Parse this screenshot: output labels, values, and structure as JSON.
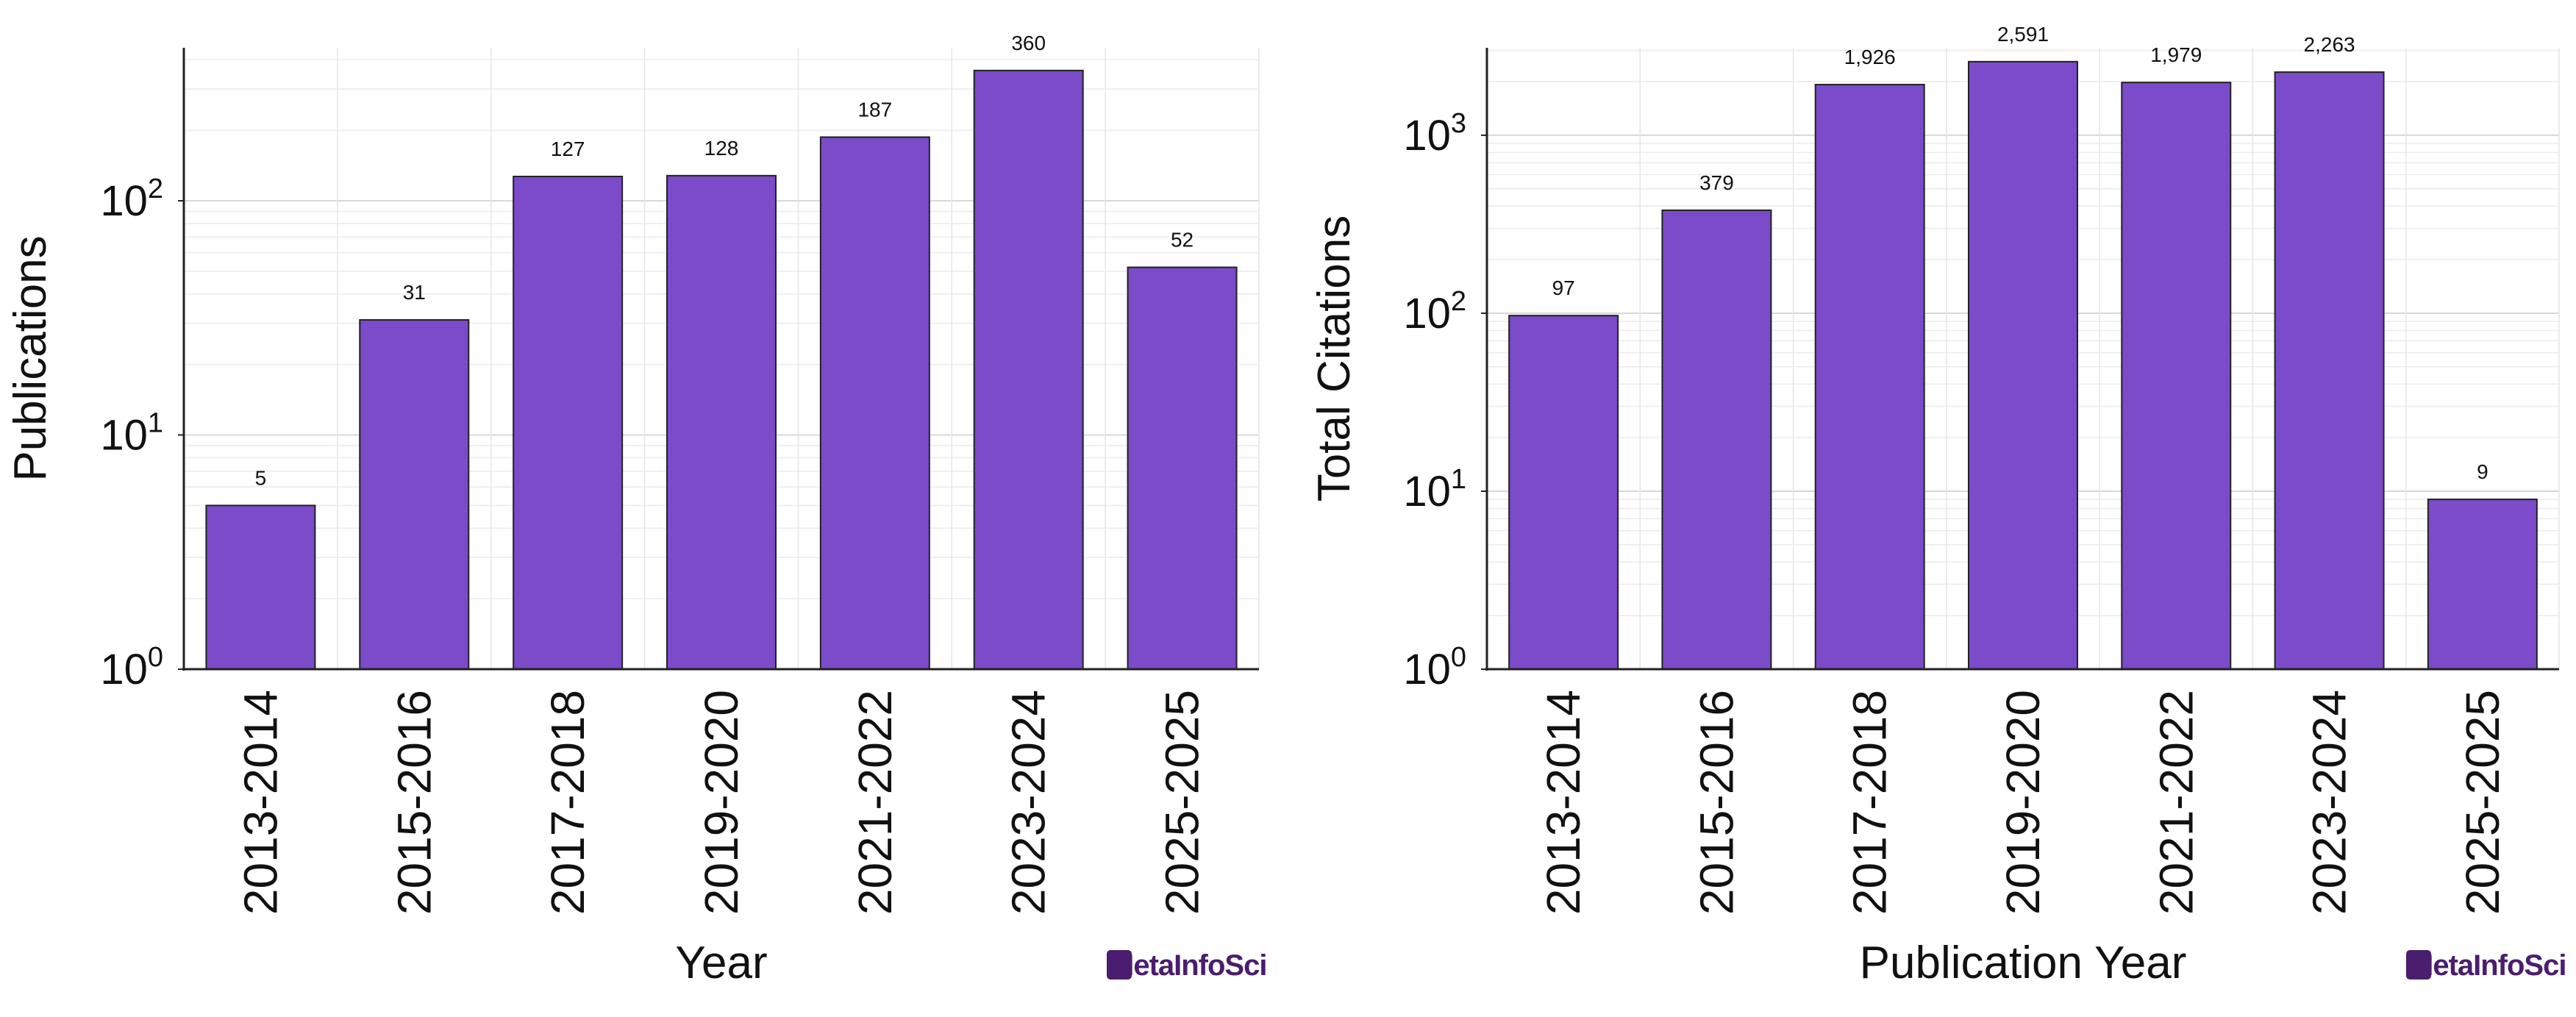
{
  "chart_data": [
    {
      "type": "bar",
      "xlabel": "Year",
      "ylabel": "Publications",
      "yscale": "log",
      "ylim": [
        1,
        450
      ],
      "grid": true,
      "categories": [
        "2013-2014",
        "2015-2016",
        "2017-2018",
        "2019-2020",
        "2021-2022",
        "2023-2024",
        "2025-2025"
      ],
      "values": [
        5,
        31,
        127,
        128,
        187,
        360,
        52
      ],
      "value_labels": [
        "5",
        "31",
        "127",
        "128",
        "187",
        "360",
        "52"
      ],
      "yticks": [
        {
          "base": "10",
          "exp": "0"
        },
        {
          "base": "10",
          "exp": "1"
        },
        {
          "base": "10",
          "exp": "2"
        }
      ],
      "bar_color": "#7b4bc9",
      "watermark": "MetaInfoSci"
    },
    {
      "type": "bar",
      "xlabel": "Publication Year",
      "ylabel": "Total Citations",
      "yscale": "log",
      "ylim": [
        1,
        3100
      ],
      "grid": true,
      "categories": [
        "2013-2014",
        "2015-2016",
        "2017-2018",
        "2019-2020",
        "2021-2022",
        "2023-2024",
        "2025-2025"
      ],
      "values": [
        97,
        379,
        1926,
        2591,
        1979,
        2263,
        9
      ],
      "value_labels": [
        "97",
        "379",
        "1,926",
        "2,591",
        "1,979",
        "2,263",
        "9"
      ],
      "yticks": [
        {
          "base": "10",
          "exp": "0"
        },
        {
          "base": "10",
          "exp": "1"
        },
        {
          "base": "10",
          "exp": "2"
        },
        {
          "base": "10",
          "exp": "3"
        }
      ],
      "bar_color": "#7b4bc9",
      "watermark": "MetaInfoSci"
    }
  ]
}
